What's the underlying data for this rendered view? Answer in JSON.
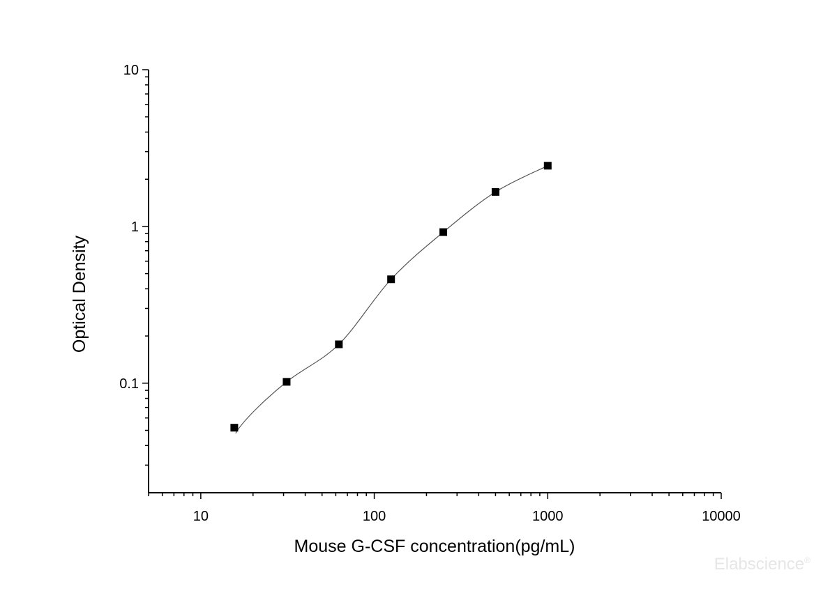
{
  "chart_data": {
    "type": "scatter",
    "xlabel": "Mouse G-CSF concentration(pg/mL)",
    "ylabel": "Optical Density",
    "xscale": "log",
    "yscale": "log",
    "xlim": [
      5,
      10000
    ],
    "ylim": [
      0.02,
      10
    ],
    "xticks": [
      10,
      100,
      1000,
      10000
    ],
    "xtick_labels": [
      "10",
      "100",
      "1000",
      "10000"
    ],
    "yticks": [
      0.1,
      1,
      10
    ],
    "ytick_labels": [
      "0.1",
      "1",
      "10"
    ],
    "grid": false,
    "marker": "square",
    "fit_curve": true,
    "colors": {
      "marker": "#000000",
      "curve": "#555555"
    },
    "points": [
      {
        "x": 15.6,
        "y": 0.052
      },
      {
        "x": 31.25,
        "y": 0.102
      },
      {
        "x": 62.5,
        "y": 0.177
      },
      {
        "x": 125,
        "y": 0.46
      },
      {
        "x": 250,
        "y": 0.92
      },
      {
        "x": 500,
        "y": 1.66
      },
      {
        "x": 1000,
        "y": 2.44
      }
    ]
  },
  "watermark": "Elabscience®"
}
